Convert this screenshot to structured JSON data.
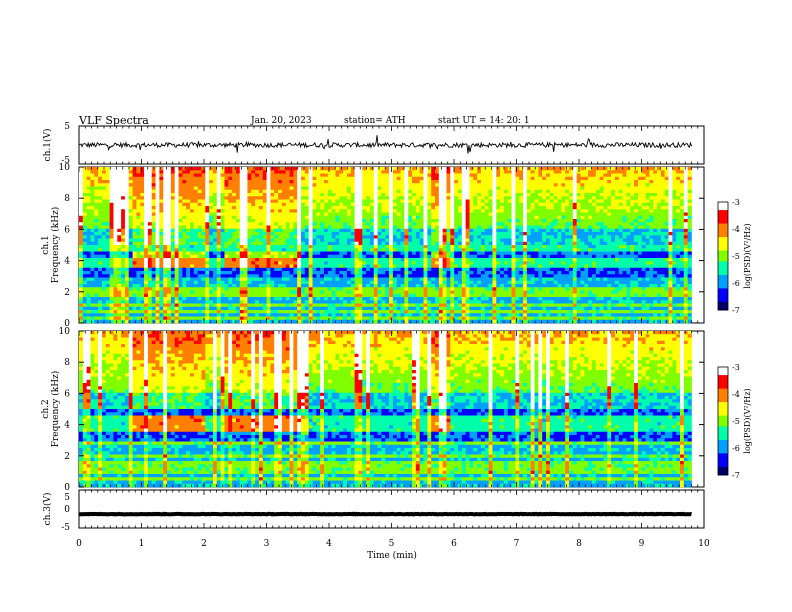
{
  "header": {
    "title": "VLF  Spectra",
    "date": "Jan. 20, 2023",
    "station": "station= ATH",
    "start": "start  UT  =   14: 20: 1"
  },
  "colors": {
    "colormap": [
      "#000066",
      "#0000ff",
      "#00a0ff",
      "#00ffaa",
      "#80ff00",
      "#ffff00",
      "#ff8000",
      "#ff0000",
      "#ffffff"
    ],
    "trace": "#000000"
  },
  "chart_data": [
    {
      "type": "line",
      "name": "ch1-waveform",
      "ylabel": "ch.1(V)",
      "ylim": [
        -5,
        5
      ],
      "yticks": [
        "5",
        "-5"
      ],
      "baseline_v": 0,
      "xlim": [
        0,
        10
      ]
    },
    {
      "type": "heatmap",
      "name": "ch1-spectrogram",
      "ylabel": "ch.1\nFrequency  (kHz)",
      "ylim": [
        0,
        10
      ],
      "yticks": [
        "0",
        "2",
        "4",
        "6",
        "8",
        "10"
      ],
      "xlim": [
        0,
        10
      ],
      "data_end_min": 9.8,
      "colorbar": {
        "label": "log(PSD)(V²/Hz)",
        "range": [
          -7,
          -3
        ],
        "ticks": [
          "-3",
          "-4",
          "-5",
          "-6",
          "-7"
        ]
      },
      "strong_band_khz": [
        3.5,
        4.5
      ],
      "strong_band_intervals_min": [
        [
          0.85,
          2.0
        ],
        [
          2.3,
          3.55
        ],
        [
          5.65,
          5.95
        ]
      ],
      "dark_band_khz": [
        3.0,
        5.0
      ],
      "line_frequencies_khz": [
        0.3,
        0.7,
        1.2,
        1.9,
        2.2,
        3.7,
        4.0,
        4.8
      ]
    },
    {
      "type": "heatmap",
      "name": "ch2-spectrogram",
      "ylabel": "ch.2\nFrequency  (kHz)",
      "ylim": [
        0,
        10
      ],
      "yticks": [
        "0",
        "2",
        "4",
        "6",
        "8",
        "10"
      ],
      "xlim": [
        0,
        10
      ],
      "data_end_min": 9.8,
      "colorbar": {
        "label": "log(PSD)(V²/Hz)",
        "range": [
          -7,
          -3
        ],
        "ticks": [
          "-3",
          "-4",
          "-5",
          "-6",
          "-7"
        ]
      },
      "strong_band_khz": [
        3.5,
        4.5
      ],
      "strong_band_intervals_min": [
        [
          0.85,
          2.0
        ],
        [
          2.3,
          3.55
        ],
        [
          5.65,
          5.95
        ]
      ],
      "line_frequencies_khz": [
        0.5,
        1.0,
        1.5,
        2.0,
        2.8,
        3.7,
        4.0,
        4.4
      ]
    },
    {
      "type": "line",
      "name": "ch3-waveform",
      "ylabel": "ch.3(V)",
      "ylim": [
        -5,
        5
      ],
      "yticks": [
        "5",
        "0",
        "-5"
      ],
      "baseline_v": -1.5,
      "xlim": [
        0,
        10
      ]
    }
  ],
  "xaxis": {
    "label": "Time  (min)",
    "ticks": [
      "0",
      "1",
      "2",
      "3",
      "4",
      "5",
      "6",
      "7",
      "8",
      "9",
      "10"
    ]
  }
}
